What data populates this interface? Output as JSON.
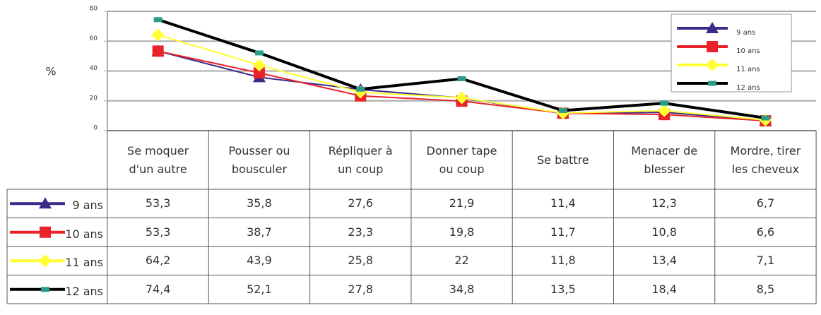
{
  "chart_data": {
    "type": "line",
    "ylabel": "%",
    "categories": [
      "Se moquer d'un autre",
      "Pousser ou bousculer",
      "Répliquer à un coup",
      "Donner tape ou coup",
      "Se battre",
      "Menacer de blesser",
      "Mordre, tirer les cheveux"
    ],
    "series": [
      {
        "name": "9 ans",
        "color": "#3a2a8a",
        "marker": "triangle",
        "values": [
          53.3,
          35.8,
          27.6,
          21.9,
          11.4,
          12.3,
          6.7
        ],
        "value_labels": [
          "53,3",
          "35,8",
          "27,6",
          "21,9",
          "11,4",
          "12,3",
          "6,7"
        ]
      },
      {
        "name": "10 ans",
        "color": "#e8242a",
        "marker": "square",
        "values": [
          53.3,
          38.7,
          23.3,
          19.8,
          11.7,
          10.8,
          6.6
        ],
        "value_labels": [
          "53,3",
          "38,7",
          "23,3",
          "19,8",
          "11,7",
          "10,8",
          "6,6"
        ]
      },
      {
        "name": "11 ans",
        "color": "#ffff33",
        "marker": "diamond",
        "values": [
          64.2,
          43.9,
          25.8,
          22,
          11.8,
          13.4,
          7.1
        ],
        "value_labels": [
          "64,2",
          "43,9",
          "25,8",
          "22",
          "11,8",
          "13,4",
          "7,1"
        ]
      },
      {
        "name": "12 ans",
        "color": "#000000",
        "marker": "bar",
        "marker_color": "#2a9d8a",
        "values": [
          74.4,
          52.1,
          27.8,
          34.8,
          13.5,
          18.4,
          8.5
        ],
        "value_labels": [
          "74,4",
          "52,1",
          "27,8",
          "34,8",
          "13,5",
          "18,4",
          "8,5"
        ]
      }
    ],
    "ylim": [
      0,
      80
    ],
    "yticks": [
      0,
      20,
      40,
      60,
      80
    ],
    "grid": true,
    "legend": "upper right"
  }
}
